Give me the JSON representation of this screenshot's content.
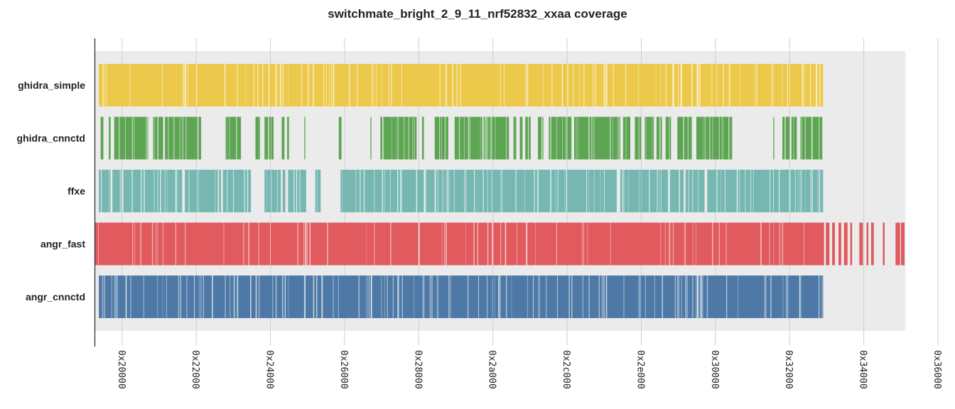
{
  "chart_data": {
    "type": "bar",
    "title": "switchmate_bright_2_9_11_nrf52832_xxaa coverage",
    "xlabel": "",
    "ylabel": "",
    "x_ticks": [
      "0x20000",
      "0x22000",
      "0x24000",
      "0x26000",
      "0x28000",
      "0x2a000",
      "0x2c000",
      "0x2e000",
      "0x30000",
      "0x32000",
      "0x34000",
      "0x36000"
    ],
    "x_tick_values": [
      131072,
      139264,
      147456,
      155648,
      163840,
      172032,
      180224,
      188416,
      196608,
      204800,
      212992,
      221184
    ],
    "xlim": [
      128100,
      221184
    ],
    "covered_region": [
      128100,
      217600
    ],
    "grid": true,
    "series": [
      {
        "name": "ghidra_simple",
        "color": "#ecc94b",
        "density": 0.88,
        "ranges": [
          [
            128500,
            208500
          ]
        ]
      },
      {
        "name": "ghidra_cnnctd",
        "color": "#5da453",
        "density": 0.8,
        "ranges": [
          [
            128700,
            129000
          ],
          [
            129600,
            129800
          ],
          [
            130200,
            131000
          ],
          [
            131000,
            134000
          ],
          [
            134500,
            135600
          ],
          [
            135800,
            139100
          ],
          [
            138800,
            139000
          ],
          [
            139100,
            139400
          ],
          [
            139500,
            139800
          ],
          [
            142500,
            144200
          ],
          [
            145800,
            146300
          ],
          [
            146800,
            147200
          ],
          [
            147300,
            147800
          ],
          [
            148700,
            149000
          ],
          [
            149300,
            149500
          ],
          [
            151200,
            151300
          ],
          [
            155000,
            155300
          ],
          [
            158500,
            158600
          ],
          [
            159600,
            163600
          ],
          [
            164200,
            164400
          ],
          [
            165600,
            167100
          ],
          [
            167800,
            171200
          ],
          [
            171300,
            173800
          ],
          [
            174300,
            174600
          ],
          [
            175000,
            175300
          ],
          [
            175600,
            176200
          ],
          [
            177000,
            177600
          ],
          [
            178200,
            180700
          ],
          [
            181000,
            186100
          ],
          [
            186400,
            187200
          ],
          [
            187700,
            188400
          ],
          [
            188800,
            189800
          ],
          [
            190100,
            190700
          ],
          [
            191100,
            191700
          ],
          [
            192400,
            193900
          ],
          [
            193900,
            194000
          ],
          [
            194500,
            198500
          ],
          [
            203000,
            203100
          ],
          [
            204000,
            204800
          ],
          [
            205000,
            205600
          ],
          [
            206000,
            208500
          ]
        ]
      },
      {
        "name": "ffxe",
        "color": "#76b7b2",
        "density": 0.85,
        "ranges": [
          [
            128500,
            129800
          ],
          [
            130000,
            131000
          ],
          [
            131200,
            137700
          ],
          [
            138000,
            142000
          ],
          [
            142200,
            145300
          ],
          [
            146800,
            148600
          ],
          [
            148800,
            149100
          ],
          [
            149400,
            150300
          ],
          [
            150400,
            151400
          ],
          [
            152400,
            153000
          ],
          [
            155200,
            164400
          ],
          [
            164600,
            185700
          ],
          [
            186100,
            193100
          ],
          [
            193300,
            195400
          ],
          [
            195700,
            208500
          ]
        ]
      },
      {
        "name": "angr_fast",
        "color": "#e05a5e",
        "density": 0.93,
        "ranges": [
          [
            128100,
            208600
          ],
          [
            208800,
            209200
          ],
          [
            209500,
            209800
          ],
          [
            210200,
            210500
          ],
          [
            210800,
            211200
          ],
          [
            211500,
            211700
          ],
          [
            212500,
            212900
          ],
          [
            213300,
            213500
          ],
          [
            213800,
            214100
          ],
          [
            215100,
            215300
          ],
          [
            216500,
            217000
          ],
          [
            217100,
            217500
          ]
        ]
      },
      {
        "name": "angr_cnnctd",
        "color": "#4e79a7",
        "density": 0.86,
        "ranges": [
          [
            128500,
            208500
          ]
        ]
      }
    ]
  }
}
